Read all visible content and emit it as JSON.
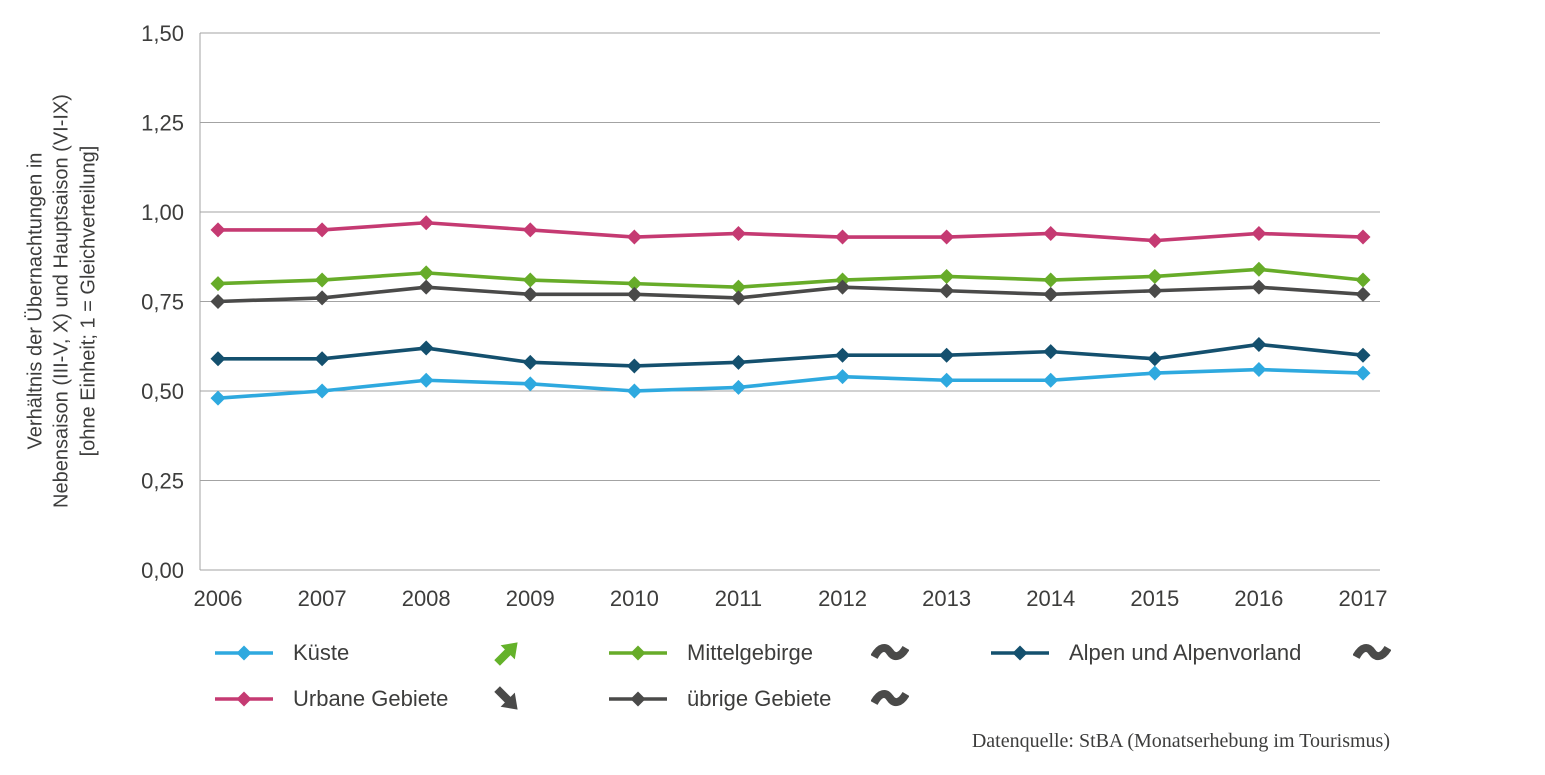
{
  "chart_data": {
    "type": "line",
    "title": "",
    "ylabel_lines": [
      "Verhältnis  der Übernachtungen in",
      "Nebensaison (III-V, X)  und  Hauptsaison (VI-IX)",
      "[ohne Einheit; 1 = Gleichverteilung]"
    ],
    "x_categories": [
      "2006",
      "2007",
      "2008",
      "2009",
      "2010",
      "2011",
      "2012",
      "2013",
      "2014",
      "2015",
      "2016",
      "2017"
    ],
    "ylim": [
      0,
      1.5
    ],
    "ytick_values": [
      0,
      0.25,
      0.5,
      0.75,
      1.0,
      1.25,
      1.5
    ],
    "ytick_labels": [
      "0,00",
      "0,25",
      "0,50",
      "0,75",
      "1,00",
      "1,25",
      "1,50"
    ],
    "grid": true,
    "legend_position": "bottom",
    "series": [
      {
        "name": "Küste",
        "color": "#2ea9df",
        "trend": "up",
        "trend_color": "#64b22a",
        "values": [
          0.48,
          0.5,
          0.53,
          0.52,
          0.5,
          0.51,
          0.54,
          0.53,
          0.53,
          0.55,
          0.56,
          0.55
        ]
      },
      {
        "name": "Urbane Gebiete",
        "color": "#c53a72",
        "trend": "down",
        "trend_color": "#4a4a49",
        "values": [
          0.95,
          0.95,
          0.97,
          0.95,
          0.93,
          0.94,
          0.93,
          0.93,
          0.94,
          0.92,
          0.94,
          0.93
        ]
      },
      {
        "name": "Mittelgebirge",
        "color": "#67ac29",
        "trend": "steady",
        "trend_color": "#4a4a49",
        "values": [
          0.8,
          0.81,
          0.83,
          0.81,
          0.8,
          0.79,
          0.81,
          0.82,
          0.81,
          0.82,
          0.84,
          0.81
        ]
      },
      {
        "name": "übrige Gebiete",
        "color": "#4a4a49",
        "trend": "steady",
        "trend_color": "#4a4a49",
        "values": [
          0.75,
          0.76,
          0.79,
          0.77,
          0.77,
          0.76,
          0.79,
          0.78,
          0.77,
          0.78,
          0.79,
          0.77
        ]
      },
      {
        "name": "Alpen und Alpenvorland",
        "color": "#14506e",
        "trend": "steady",
        "trend_color": "#4a4a49",
        "values": [
          0.59,
          0.59,
          0.62,
          0.58,
          0.57,
          0.58,
          0.6,
          0.6,
          0.61,
          0.59,
          0.63,
          0.6
        ]
      }
    ],
    "source": "Datenquelle: StBA (Monatserhebung im Tourismus)"
  }
}
